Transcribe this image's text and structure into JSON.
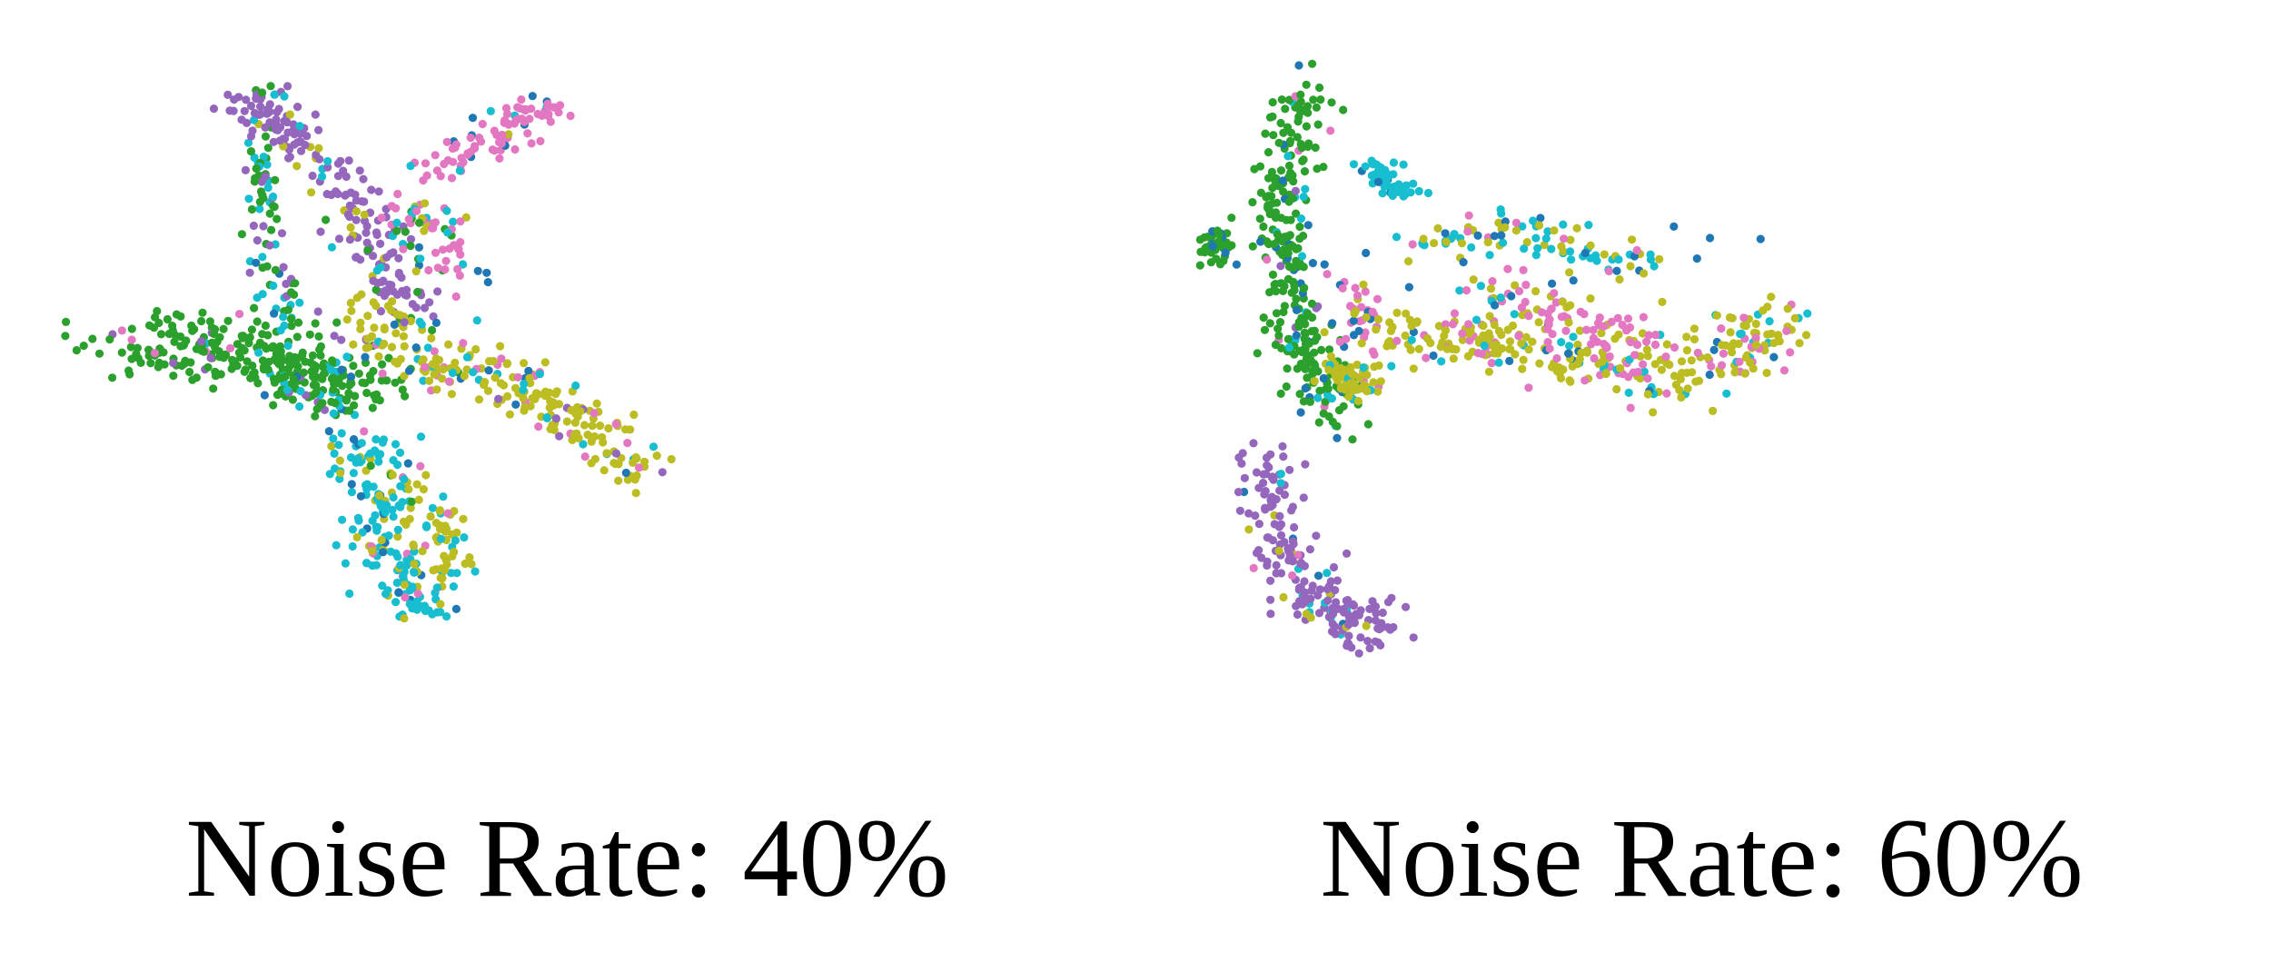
{
  "palette": {
    "green": "#2ca02c",
    "purple": "#9467bd",
    "pink": "#e377c2",
    "olive": "#bcbd22",
    "cyan": "#17becf",
    "blue": "#1f77b4"
  },
  "chart_data": [
    {
      "type": "scatter",
      "title": "Noise Rate: 40%",
      "xlabel": "",
      "ylabel": "",
      "axes_visible": false,
      "grid": false,
      "xlim": [
        0,
        100
      ],
      "ylim": [
        0,
        100
      ],
      "seed": 11,
      "clusters": [
        {
          "color": "green",
          "count": 260,
          "spread": [
            5.0,
            2.3
          ],
          "path": [
            [
              4,
              60
            ],
            [
              10,
              57
            ],
            [
              16,
              56
            ],
            [
              22,
              54
            ],
            [
              26,
              52
            ]
          ],
          "mix": {
            "purple": 0.03,
            "cyan": 0.03,
            "pink": 0.02
          }
        },
        {
          "color": "green",
          "count": 45,
          "spread": [
            1.2,
            1.8
          ],
          "path": [
            [
              17,
              75
            ],
            [
              17,
              82
            ],
            [
              17,
              88
            ]
          ],
          "mix": {
            "cyan": 0.25,
            "purple": 0.15
          }
        },
        {
          "color": "cyan",
          "count": 40,
          "spread": [
            1.4,
            2.0
          ],
          "path": [
            [
              17,
              72
            ],
            [
              19,
              66
            ],
            [
              18,
              61
            ]
          ],
          "mix": {
            "green": 0.35,
            "blue": 0.12,
            "purple": 0.15
          }
        },
        {
          "color": "purple",
          "count": 200,
          "spread": [
            1.8,
            1.8
          ],
          "path": [
            [
              14,
              95
            ],
            [
              18,
              92
            ],
            [
              21,
              88
            ],
            [
              24,
              83
            ],
            [
              27,
              78
            ],
            [
              29,
              72
            ],
            [
              31,
              66
            ],
            [
              33,
              62
            ]
          ],
          "mix": {
            "green": 0.08,
            "olive": 0.07,
            "cyan": 0.05
          }
        },
        {
          "color": "green",
          "count": 60,
          "spread": [
            2.2,
            1.6
          ],
          "path": [
            [
              18,
              52
            ],
            [
              22,
              51
            ],
            [
              25,
              49
            ],
            [
              27,
              48
            ]
          ],
          "mix": {
            "cyan": 0.2,
            "blue": 0.1,
            "purple": 0.1
          }
        },
        {
          "color": "pink",
          "count": 90,
          "spread": [
            2.0,
            1.2
          ],
          "path": [
            [
              36,
              84
            ],
            [
              39,
              86
            ],
            [
              42,
              89
            ],
            [
              45,
              92
            ],
            [
              47,
              94
            ]
          ],
          "mix": {
            "blue": 0.06,
            "cyan": 0.05,
            "olive": 0.03
          }
        },
        {
          "color": "pink",
          "count": 65,
          "spread": [
            1.8,
            2.0
          ],
          "path": [
            [
              32,
              73
            ],
            [
              34,
              78
            ],
            [
              35,
              77
            ],
            [
              37,
              72
            ],
            [
              36,
              69
            ]
          ],
          "mix": {
            "cyan": 0.2,
            "green": 0.1,
            "olive": 0.1,
            "blue": 0.05
          }
        },
        {
          "color": "olive",
          "count": 240,
          "spread": [
            1.8,
            2.3
          ],
          "path": [
            [
              26,
              62
            ],
            [
              30,
              58
            ],
            [
              35,
              56
            ],
            [
              40,
              54
            ],
            [
              44,
              52
            ],
            [
              48,
              48
            ],
            [
              52,
              46
            ],
            [
              55,
              42
            ],
            [
              58,
              38
            ]
          ],
          "mix": {
            "cyan": 0.12,
            "pink": 0.08,
            "blue": 0.04,
            "purple": 0.03
          }
        },
        {
          "color": "cyan",
          "count": 180,
          "spread": [
            2.1,
            1.5
          ],
          "path": [
            [
              27,
              44
            ],
            [
              28,
              39
            ],
            [
              29,
              34
            ],
            [
              30,
              28
            ],
            [
              32,
              22
            ],
            [
              34,
              17
            ]
          ],
          "mix": {
            "olive": 0.15,
            "pink": 0.08,
            "blue": 0.05,
            "green": 0.02
          }
        },
        {
          "color": "olive",
          "count": 70,
          "spread": [
            1.6,
            1.8
          ],
          "path": [
            [
              33,
              37
            ],
            [
              35,
              32
            ],
            [
              36,
              26
            ],
            [
              37,
              22
            ]
          ],
          "mix": {
            "cyan": 0.25,
            "pink": 0.08
          }
        },
        {
          "color": "blue",
          "count": 10,
          "spread": [
            2.0,
            4.0
          ],
          "path": [
            [
              25,
              50
            ],
            [
              32,
              60
            ],
            [
              40,
              70
            ]
          ],
          "mix": {}
        }
      ]
    },
    {
      "type": "scatter",
      "title": "Noise Rate: 60%",
      "xlabel": "",
      "ylabel": "",
      "axes_visible": false,
      "grid": false,
      "xlim": [
        0,
        100
      ],
      "ylim": [
        0,
        100
      ],
      "seed": 23,
      "clusters": [
        {
          "color": "green",
          "count": 300,
          "spread": [
            1.6,
            2.3
          ],
          "path": [
            [
              7,
              96
            ],
            [
              6,
              90
            ],
            [
              5,
              84
            ],
            [
              4,
              78
            ],
            [
              4,
              72
            ],
            [
              5,
              66
            ],
            [
              6,
              60
            ],
            [
              7,
              55
            ],
            [
              9,
              50
            ],
            [
              10,
              46
            ]
          ],
          "mix": {
            "blue": 0.06,
            "cyan": 0.05,
            "purple": 0.03,
            "pink": 0.02
          }
        },
        {
          "color": "green",
          "count": 40,
          "spread": [
            1.0,
            1.2
          ],
          "path": [
            [
              -3,
              74
            ],
            [
              -3,
              71
            ]
          ],
          "mix": {
            "blue": 0.15
          }
        },
        {
          "color": "cyan",
          "count": 55,
          "spread": [
            1.2,
            1.0
          ],
          "path": [
            [
              14,
              84
            ],
            [
              16,
              82
            ],
            [
              18,
              80
            ]
          ],
          "mix": {
            "blue": 0.1
          }
        },
        {
          "color": "purple",
          "count": 200,
          "spread": [
            1.9,
            2.2
          ],
          "path": [
            [
              3,
              40
            ],
            [
              3,
              34
            ],
            [
              4,
              28
            ],
            [
              6,
              22
            ],
            [
              9,
              18
            ],
            [
              12,
              15
            ],
            [
              14,
              16
            ]
          ],
          "mix": {
            "cyan": 0.05,
            "olive": 0.05,
            "pink": 0.03,
            "blue": 0.03
          }
        },
        {
          "color": "pink",
          "count": 35,
          "spread": [
            1.4,
            1.5
          ],
          "path": [
            [
              12,
              67
            ],
            [
              13,
              62
            ],
            [
              12,
              58
            ]
          ],
          "mix": {
            "blue": 0.15,
            "olive": 0.1
          }
        },
        {
          "color": "olive",
          "count": 300,
          "spread": [
            2.2,
            2.0
          ],
          "path": [
            [
              16,
              59
            ],
            [
              22,
              58
            ],
            [
              28,
              58
            ],
            [
              34,
              56
            ],
            [
              40,
              54
            ],
            [
              46,
              52
            ],
            [
              52,
              54
            ],
            [
              56,
              58
            ],
            [
              58,
              62
            ]
          ],
          "mix": {
            "pink": 0.17,
            "cyan": 0.08,
            "blue": 0.03
          }
        },
        {
          "color": "cyan",
          "count": 90,
          "spread": [
            2.2,
            1.6
          ],
          "path": [
            [
              20,
              72
            ],
            [
              26,
              74
            ],
            [
              32,
              74
            ],
            [
              38,
              71
            ],
            [
              44,
              69
            ]
          ],
          "mix": {
            "olive": 0.3,
            "pink": 0.1,
            "blue": 0.05
          }
        },
        {
          "color": "pink",
          "count": 90,
          "spread": [
            2.5,
            1.8
          ],
          "path": [
            [
              26,
              66
            ],
            [
              30,
              64
            ],
            [
              34,
              62
            ],
            [
              38,
              60
            ],
            [
              42,
              58
            ],
            [
              46,
              57
            ]
          ],
          "mix": {
            "olive": 0.3,
            "cyan": 0.1
          }
        },
        {
          "color": "olive",
          "count": 60,
          "spread": [
            1.0,
            1.6
          ],
          "path": [
            [
              10,
              53
            ],
            [
              14,
              51
            ]
          ],
          "mix": {
            "cyan": 0.2,
            "pink": 0.1
          }
        },
        {
          "color": "blue",
          "count": 15,
          "spread": [
            2.5,
            4.0
          ],
          "path": [
            [
              8,
              60
            ],
            [
              20,
              70
            ],
            [
              56,
              70
            ]
          ],
          "mix": {}
        }
      ]
    }
  ]
}
